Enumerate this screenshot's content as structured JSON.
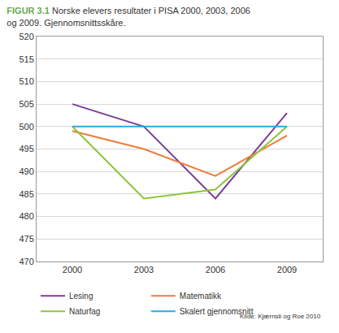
{
  "chart_data": {
    "type": "line",
    "title": "FIGUR 3.1",
    "subtitle": "Norske elevers resultater i PISA 2000, 2003, 2006 og 2009. Gjennomsnittsskåre.",
    "annotations": [
      "Kilde: Kjærnsli og Roe 2010"
    ],
    "categories": [
      "2000",
      "2003",
      "2006",
      "2009"
    ],
    "series": [
      {
        "name": "Lesing",
        "color": "#7b3f98",
        "values": [
          505,
          500,
          484,
          503
        ]
      },
      {
        "name": "Matematikk",
        "color": "#f07b3a",
        "values": [
          499,
          495,
          489,
          498
        ]
      },
      {
        "name": "Naturfag",
        "color": "#8cc63f",
        "values": [
          500,
          484,
          486,
          500
        ]
      },
      {
        "name": "Skalert gjennomsnitt",
        "color": "#27aae1",
        "values": [
          500,
          500,
          500,
          500
        ]
      }
    ],
    "ylim": [
      470,
      520
    ],
    "yticks": [
      470,
      475,
      480,
      485,
      490,
      495,
      500,
      505,
      510,
      515,
      520
    ],
    "grid": true,
    "legend": "bottom"
  }
}
